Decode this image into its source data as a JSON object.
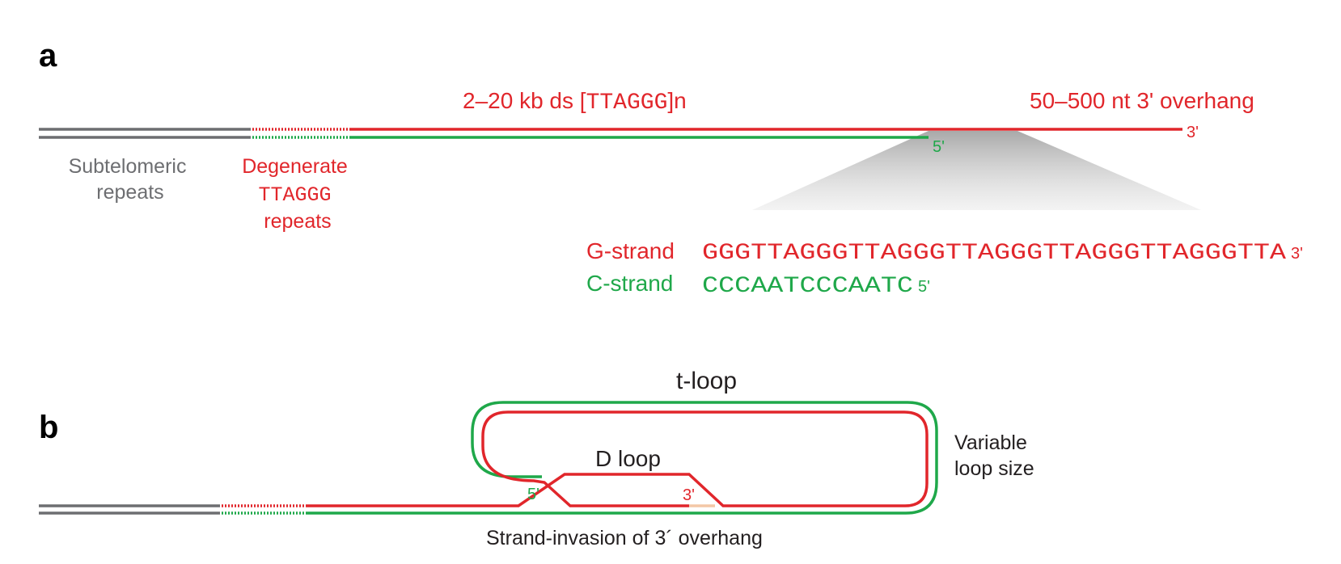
{
  "panel_a": {
    "label": "a",
    "ds_label_prefix": "2–20 kb ds [",
    "ds_label_seq": "TTAGGG",
    "ds_label_suffix": "]n",
    "overhang_label": "50–500 nt 3' overhang",
    "end_3prime": "3'",
    "end_5prime": "5'",
    "subtelomeric_line1": "Subtelomeric",
    "subtelomeric_line2": "repeats",
    "degenerate_line1": "Degenerate",
    "degenerate_line2": "TTAGGG",
    "degenerate_line3": "repeats",
    "g_strand_label": "G-strand",
    "g_strand_seq": "GGGTTAGGGTTAGGGTTAGGGTTAGGGTTAGGGTTA",
    "g_strand_end": "3'",
    "c_strand_label": "C-strand",
    "c_strand_seq": "CCCAATCCCAATC",
    "c_strand_end": "5'"
  },
  "panel_b": {
    "label": "b",
    "t_loop_label": "t-loop",
    "d_loop_label": "D loop",
    "variable_line1": "Variable",
    "variable_line2": "loop size",
    "end_5prime": "5'",
    "end_3prime": "3'",
    "strand_invasion_label": "Strand-invasion of 3´ overhang"
  },
  "colors": {
    "g_strand": "#e1262b",
    "c_strand": "#1fa84a",
    "subtelomeric": "#6d6e71",
    "text": "#231f20"
  }
}
